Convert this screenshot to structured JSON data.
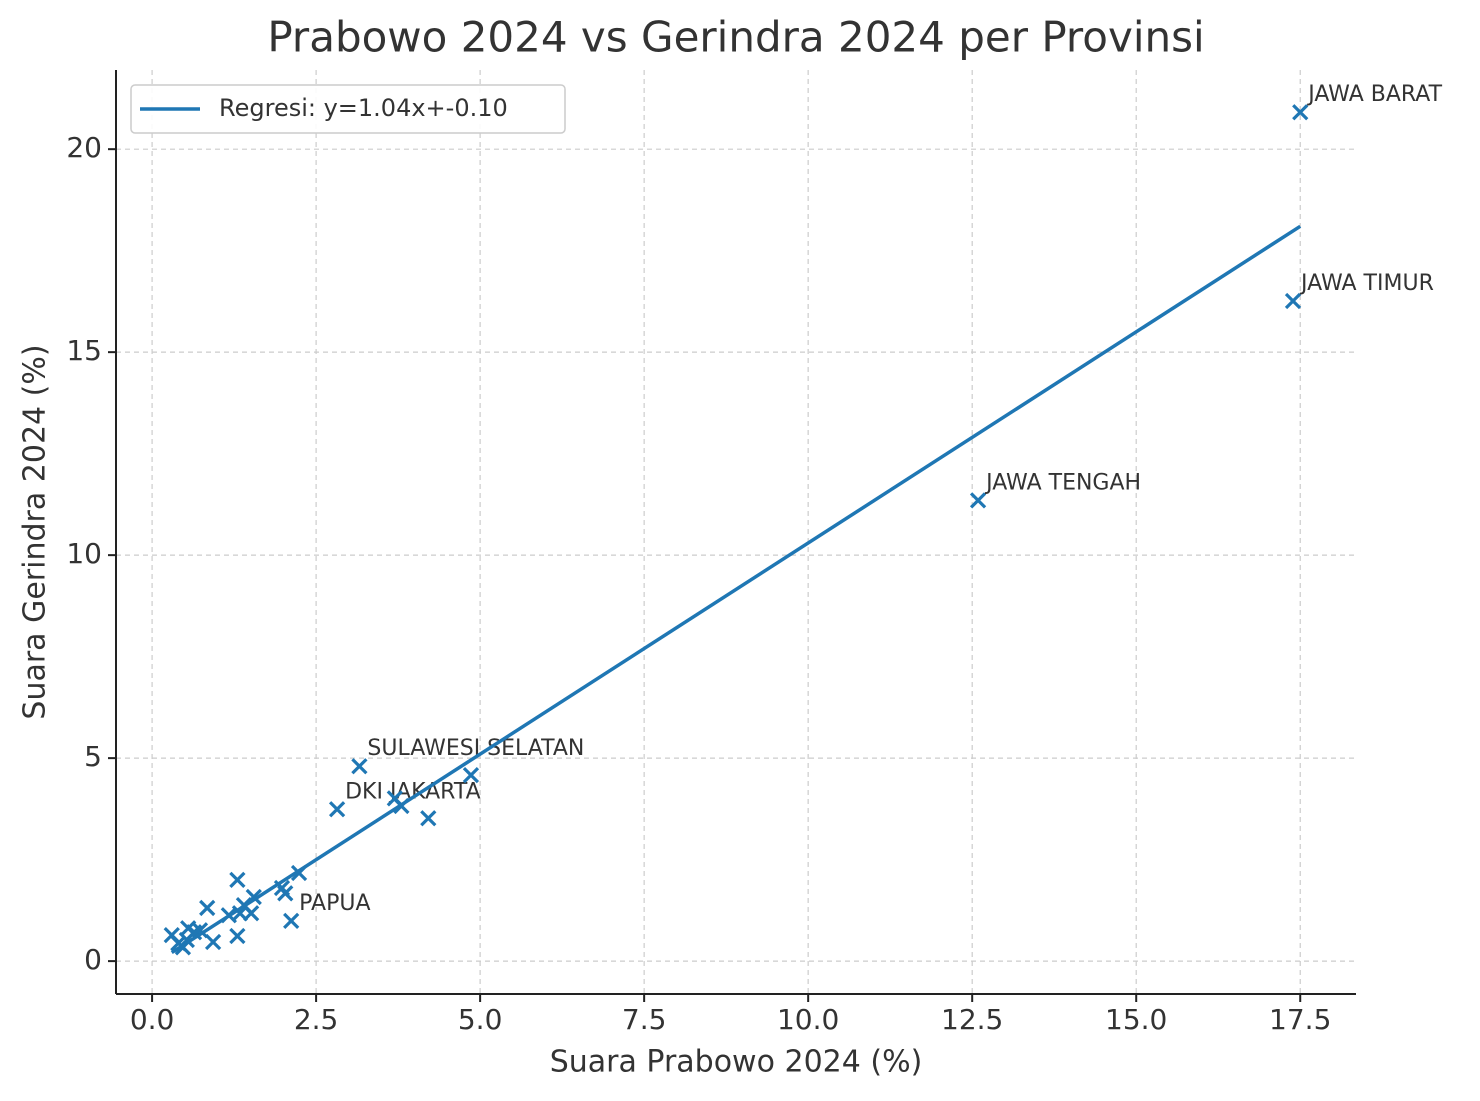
{
  "chart_data": {
    "type": "scatter",
    "title": "Prabowo 2024 vs Gerindra 2024 per Provinsi",
    "x_label": "Suara Prabowo 2024 (%)",
    "y_label": "Suara Gerindra 2024 (%)",
    "xlim": [
      -0.55,
      18.35
    ],
    "ylim": [
      -0.81,
      21.95
    ],
    "xticks": [
      {
        "value": 0,
        "label": "0.0"
      },
      2.5,
      {
        "value": 5,
        "label": "5.0"
      },
      7.5,
      {
        "value": 10,
        "label": "10.0"
      },
      12.5,
      {
        "value": 15,
        "label": "15.0"
      },
      17.5
    ],
    "yticks": [
      0,
      5,
      10,
      15,
      20
    ],
    "grid": true,
    "legend": "upper left",
    "series": [
      {
        "type": "scatter",
        "color": "#1f77b4",
        "x": [
          17.5,
          17.39,
          12.59,
          3.16,
          2.82,
          2.12,
          3.7,
          3.8,
          4.21,
          4.86,
          2.24,
          2.03,
          1.98,
          1.3,
          1.3,
          0.84,
          0.93,
          1.17,
          1.4,
          1.55,
          1.51,
          1.34,
          0.73,
          0.55,
          0.53,
          0.4,
          0.3,
          0.47,
          0.64
        ],
        "values": [
          20.91,
          16.26,
          11.35,
          4.8,
          3.74,
          0.99,
          4.01,
          3.82,
          3.52,
          4.58,
          2.17,
          1.67,
          1.8,
          2.0,
          0.62,
          1.31,
          0.47,
          1.13,
          1.38,
          1.58,
          1.18,
          1.18,
          0.76,
          0.81,
          0.52,
          0.44,
          0.64,
          0.34,
          0.71
        ],
        "point_labels": [
          "JAWA BARAT",
          "JAWA TIMUR",
          "JAWA TENGAH",
          "SULAWESI SELATAN",
          "DKI JAKARTA",
          "PAPUA",
          null,
          null,
          null,
          null,
          null,
          null,
          null,
          null,
          null,
          null,
          null,
          null,
          null,
          null,
          null,
          null,
          null,
          null,
          null,
          null,
          null,
          null,
          null
        ]
      },
      {
        "type": "line",
        "name": "Regresi: y=1.04x+-0.10",
        "color": "#1f77b4",
        "x": [
          0.3,
          17.5
        ],
        "values": [
          0.21,
          18.1
        ]
      }
    ]
  }
}
